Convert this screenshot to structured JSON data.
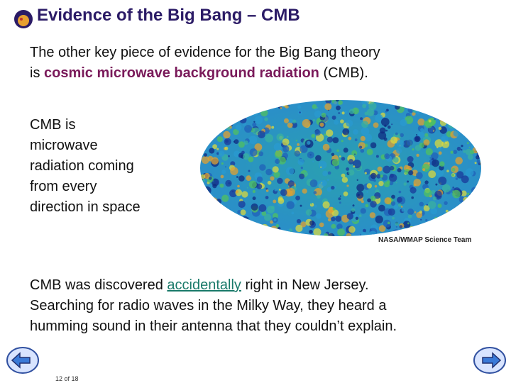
{
  "header": {
    "title": "Evidence of the Big Bang – CMB"
  },
  "intro": {
    "line1": "The other key piece of evidence for the Big Bang theory",
    "line2_start": "is ",
    "highlight": "cosmic microwave background radiation",
    "line2_end": " (CMB)."
  },
  "definition": {
    "lines": [
      "CMB is",
      "microwave",
      "radiation coming",
      "from every",
      "direction in space"
    ]
  },
  "image": {
    "credit": "NASA/WMAP Science Team"
  },
  "discovery": {
    "line1_start": "CMB was discovered ",
    "link": "accidentally",
    "line1_end": " right in New Jersey.",
    "line2": "Searching for radio waves in the Milky Way, they heard a",
    "line3": "humming sound in their antenna that they couldn’t explain."
  },
  "footer": {
    "page": "12 of 18"
  }
}
